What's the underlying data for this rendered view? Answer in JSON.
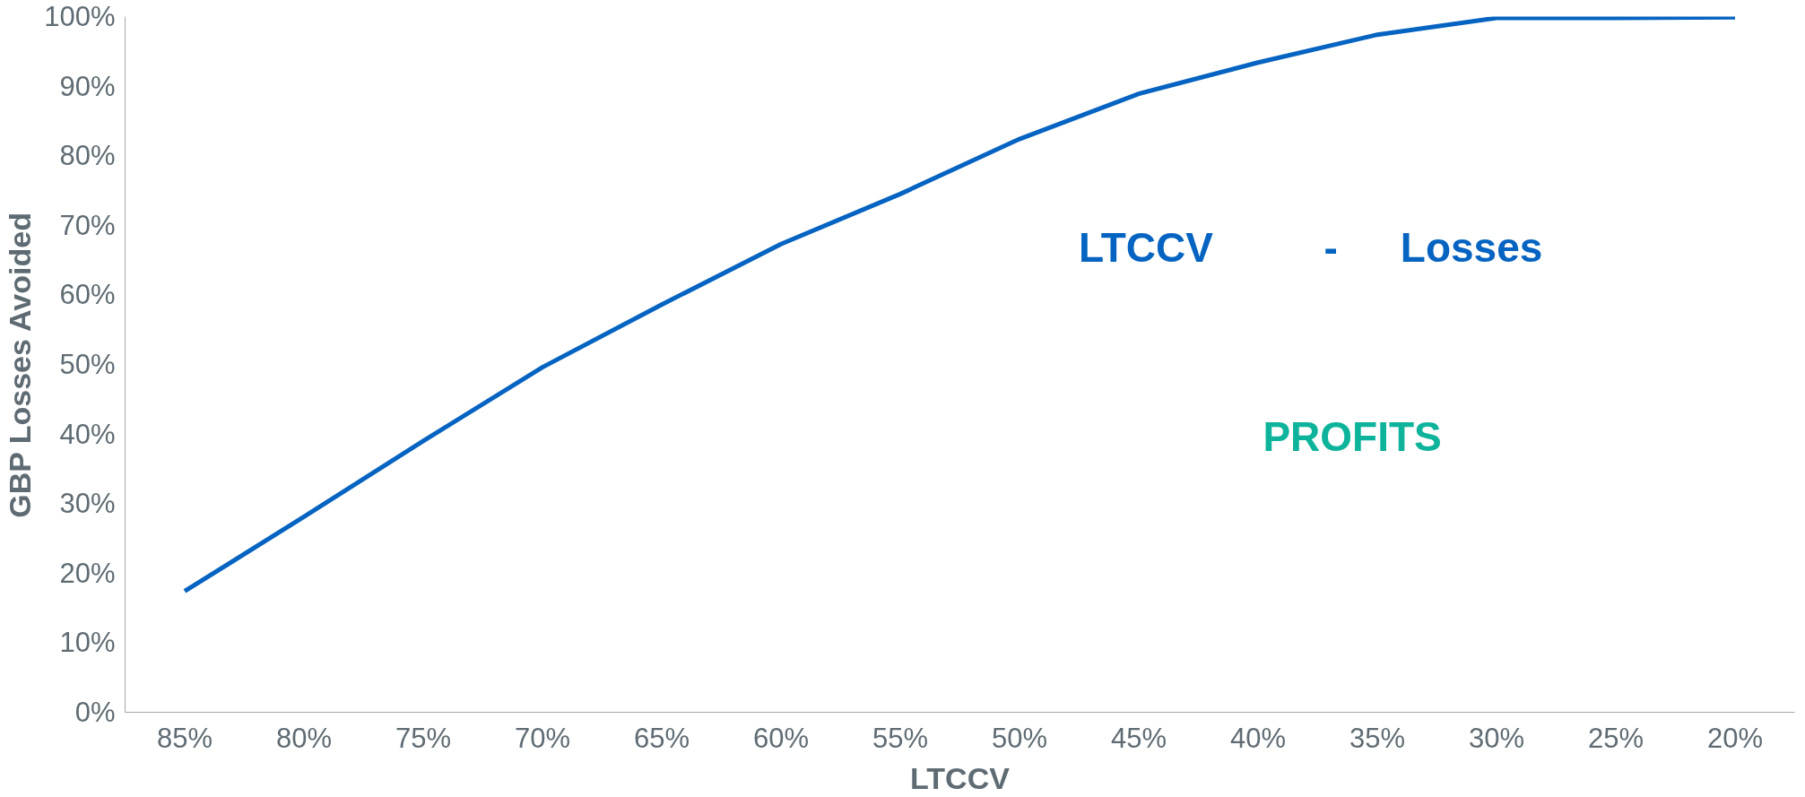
{
  "chart_data": {
    "type": "line",
    "xlabel": "LTCCV",
    "ylabel": "GBP Losses Avoided",
    "categories": [
      "85%",
      "80%",
      "75%",
      "70%",
      "65%",
      "60%",
      "55%",
      "50%",
      "45%",
      "40%",
      "35%",
      "30%",
      "25%",
      "20%"
    ],
    "series": [
      {
        "color": "#0563c1",
        "values": [
          17.4,
          28.1,
          39.0,
          49.6,
          58.6,
          67.3,
          74.5,
          82.4,
          88.9,
          93.4,
          97.4,
          99.8,
          99.8,
          99.9
        ]
      }
    ],
    "ylim": [
      0,
      100
    ],
    "yticks": [
      {
        "value": 0,
        "label": "0%"
      },
      {
        "value": 10,
        "label": "10%"
      },
      {
        "value": 20,
        "label": "20%"
      },
      {
        "value": 30,
        "label": "30%"
      },
      {
        "value": 40,
        "label": "40%"
      },
      {
        "value": 50,
        "label": "50%"
      },
      {
        "value": 60,
        "label": "60%"
      },
      {
        "value": 70,
        "label": "70%"
      },
      {
        "value": 80,
        "label": "80%"
      },
      {
        "value": 90,
        "label": "90%"
      },
      {
        "value": 100,
        "label": "100%"
      }
    ],
    "grid": false,
    "marker": "none",
    "line_style": "solid",
    "annotations": [
      "LTCCV",
      "-",
      "Losses",
      "PROFITS"
    ]
  }
}
